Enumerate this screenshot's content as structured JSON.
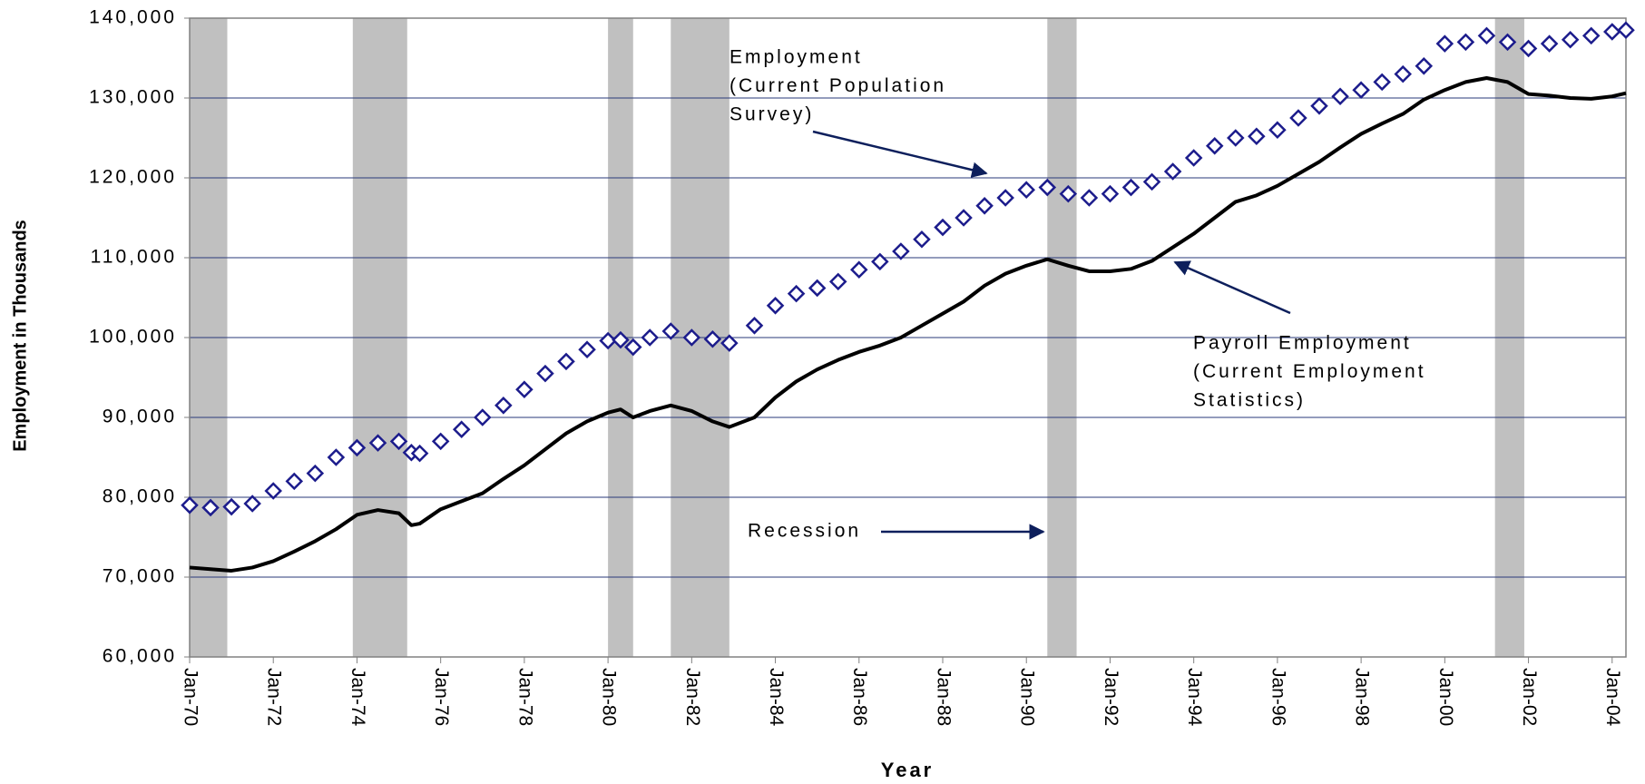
{
  "chart_data": {
    "type": "line",
    "xlabel": "Year",
    "ylabel": "Employment in Thousands",
    "xlim": [
      1970,
      2004.33
    ],
    "ylim": [
      60000,
      140000
    ],
    "xticks": [
      {
        "value": 1970,
        "label": "Jan-70"
      },
      {
        "value": 1972,
        "label": "Jan-72"
      },
      {
        "value": 1974,
        "label": "Jan-74"
      },
      {
        "value": 1976,
        "label": "Jan-76"
      },
      {
        "value": 1978,
        "label": "Jan-78"
      },
      {
        "value": 1980,
        "label": "Jan-80"
      },
      {
        "value": 1982,
        "label": "Jan-82"
      },
      {
        "value": 1984,
        "label": "Jan-84"
      },
      {
        "value": 1986,
        "label": "Jan-86"
      },
      {
        "value": 1988,
        "label": "Jan-88"
      },
      {
        "value": 1990,
        "label": "Jan-90"
      },
      {
        "value": 1992,
        "label": "Jan-92"
      },
      {
        "value": 1994,
        "label": "Jan-94"
      },
      {
        "value": 1996,
        "label": "Jan-96"
      },
      {
        "value": 1998,
        "label": "Jan-98"
      },
      {
        "value": 2000,
        "label": "Jan-00"
      },
      {
        "value": 2002,
        "label": "Jan-02"
      },
      {
        "value": 2004,
        "label": "Jan-04"
      }
    ],
    "yticks": [
      {
        "value": 60000,
        "label": "60,000"
      },
      {
        "value": 70000,
        "label": "70,000"
      },
      {
        "value": 80000,
        "label": "80,000"
      },
      {
        "value": 90000,
        "label": "90,000"
      },
      {
        "value": 100000,
        "label": "100,000"
      },
      {
        "value": 110000,
        "label": "110,000"
      },
      {
        "value": 120000,
        "label": "120,000"
      },
      {
        "value": 130000,
        "label": "130,000"
      },
      {
        "value": 140000,
        "label": "140,000"
      }
    ],
    "grid": true,
    "recessions": [
      [
        1970.0,
        1970.9
      ],
      [
        1973.9,
        1975.2
      ],
      [
        1980.0,
        1980.6
      ],
      [
        1981.5,
        1982.9
      ],
      [
        1990.5,
        1991.2
      ],
      [
        2001.2,
        2001.9
      ]
    ],
    "recession_color": "#c0c0c0",
    "x": [
      1970.0,
      1970.5,
      1971.0,
      1971.5,
      1972.0,
      1972.5,
      1973.0,
      1973.5,
      1974.0,
      1974.5,
      1975.0,
      1975.3,
      1975.5,
      1976.0,
      1976.5,
      1977.0,
      1977.5,
      1978.0,
      1978.5,
      1979.0,
      1979.5,
      1980.0,
      1980.3,
      1980.6,
      1981.0,
      1981.5,
      1982.0,
      1982.5,
      1982.9,
      1983.5,
      1984.0,
      1984.5,
      1985.0,
      1985.5,
      1986.0,
      1986.5,
      1987.0,
      1987.5,
      1988.0,
      1988.5,
      1989.0,
      1989.5,
      1990.0,
      1990.5,
      1991.0,
      1991.5,
      1992.0,
      1992.5,
      1993.0,
      1993.5,
      1994.0,
      1994.5,
      1995.0,
      1995.5,
      1996.0,
      1996.5,
      1997.0,
      1997.5,
      1998.0,
      1998.5,
      1999.0,
      1999.5,
      2000.0,
      2000.5,
      2001.0,
      2001.5,
      2002.0,
      2002.5,
      2003.0,
      2003.5,
      2004.0,
      2004.33
    ],
    "series": [
      {
        "marker": "diamond",
        "color": "#1c1c8c",
        "values": [
          79000,
          78700,
          78800,
          79200,
          80800,
          82000,
          83000,
          85000,
          86200,
          86800,
          87000,
          85600,
          85500,
          87000,
          88500,
          90000,
          91500,
          93500,
          95500,
          97000,
          98500,
          99600,
          99700,
          98800,
          100000,
          100800,
          100000,
          99800,
          99300,
          101500,
          104000,
          105500,
          106200,
          107000,
          108500,
          109500,
          110800,
          112300,
          113800,
          115000,
          116500,
          117500,
          118500,
          118800,
          118000,
          117500,
          118000,
          118800,
          119500,
          120800,
          122500,
          124000,
          125000,
          125200,
          126000,
          127500,
          129000,
          130200,
          131000,
          132000,
          133000,
          134000,
          136800,
          137000,
          137800,
          137000,
          136200,
          136800,
          137300,
          137800,
          138300,
          138500
        ]
      },
      {
        "marker": "none",
        "color": "#000000",
        "values": [
          71200,
          71000,
          70800,
          71200,
          72000,
          73200,
          74500,
          76000,
          77800,
          78400,
          78000,
          76500,
          76700,
          78500,
          79500,
          80500,
          82300,
          84000,
          86000,
          88000,
          89500,
          90600,
          91000,
          90000,
          90800,
          91500,
          90800,
          89500,
          88800,
          90000,
          92500,
          94500,
          96000,
          97200,
          98200,
          99000,
          100000,
          101500,
          103000,
          104500,
          106500,
          108000,
          109000,
          109800,
          109000,
          108300,
          108300,
          108600,
          109600,
          111300,
          113000,
          115000,
          117000,
          117800,
          119000,
          120500,
          122000,
          123800,
          125500,
          126800,
          128000,
          129800,
          131000,
          132000,
          132500,
          132000,
          130500,
          130300,
          130000,
          129900,
          130200,
          130600
        ]
      }
    ],
    "annotations": [
      {
        "lines": [
          "Employment",
          "(Current Population",
          "Survey)"
        ]
      },
      {
        "lines": [
          "Payroll Employment",
          "(Current Employment",
          "Statistics)"
        ]
      },
      {
        "lines": [
          "Recession"
        ]
      }
    ]
  }
}
